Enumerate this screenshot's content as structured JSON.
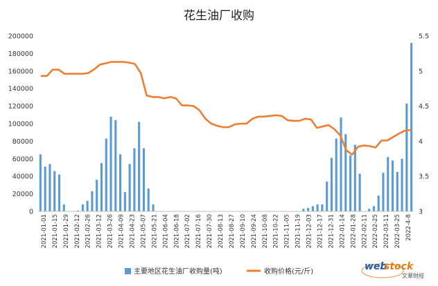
{
  "chart_data": {
    "type": "bar+line",
    "title": "花生油厂收购",
    "y_left": {
      "min": 0,
      "max": 200000,
      "ticks": [
        "0",
        "20000",
        "40000",
        "60000",
        "80000",
        "100000",
        "120000",
        "140000",
        "160000",
        "180000",
        "200000"
      ]
    },
    "y_right": {
      "min": 3,
      "max": 5.5,
      "ticks": [
        "3",
        "3.5",
        "4",
        "4.5",
        "5",
        "5.5"
      ]
    },
    "x_tick_labels": [
      "2021-01-01",
      "2021-01-15",
      "2021-01-29",
      "2021-02-12",
      "2021-02-26",
      "2021-03-12",
      "2021-03-26",
      "2021-04-09",
      "2021-04-23",
      "2021-05-07",
      "2021-05-21",
      "2021-06-04",
      "2021-06-18",
      "2021-07-02",
      "2021-07-16",
      "2021-07-30",
      "2021-08-13",
      "2021-08-27",
      "2021-09-10",
      "2021-09-24",
      "2021-10-08",
      "2021-10-22",
      "2021-11-05",
      "2021-11-19",
      "2021-12-03",
      "2021-12-17",
      "2021-12-31",
      "2022-01-14",
      "2022-01-28",
      "2022-02-11",
      "2022-02-25",
      "2022-03-11",
      "2022-03-25",
      "2022-4-8"
    ],
    "series": [
      {
        "name": "主要地区花生油厂收购量(吨)",
        "type": "bar",
        "axis": "left",
        "color": "#5b9bd5",
        "values": [
          65000,
          51000,
          54000,
          46000,
          42000,
          8000,
          0,
          0,
          1000,
          8000,
          12000,
          23000,
          36000,
          55000,
          83000,
          108000,
          104000,
          65000,
          22000,
          54000,
          72000,
          102000,
          72000,
          26000,
          8000,
          0,
          0,
          0,
          0,
          0,
          0,
          0,
          0,
          0,
          0,
          0,
          0,
          0,
          0,
          0,
          0,
          0,
          0,
          0,
          0,
          0,
          0,
          0,
          0,
          0,
          0,
          0,
          0,
          0,
          0,
          0,
          3000,
          4000,
          6000,
          8000,
          8000,
          34000,
          61000,
          83000,
          107000,
          88000,
          64000,
          76000,
          43000,
          0,
          3000,
          6000,
          18000,
          44000,
          62000,
          58000,
          45000,
          60000,
          123000,
          192000
        ]
      },
      {
        "name": "收购价格(元/斤)",
        "type": "line",
        "axis": "right",
        "color": "#ed7d31",
        "values": [
          4.93,
          4.93,
          5.02,
          5.02,
          4.96,
          4.96,
          4.96,
          4.96,
          4.97,
          5.02,
          5.09,
          5.11,
          5.13,
          5.13,
          5.13,
          5.12,
          5.1,
          4.97,
          4.65,
          4.63,
          4.63,
          4.61,
          4.63,
          4.61,
          4.51,
          4.51,
          4.5,
          4.44,
          4.32,
          4.25,
          4.22,
          4.2,
          4.2,
          4.24,
          4.25,
          4.25,
          4.32,
          4.35,
          4.35,
          4.36,
          4.37,
          4.36,
          4.3,
          4.29,
          4.29,
          4.32,
          4.31,
          4.19,
          4.21,
          4.23,
          4.17,
          4.08,
          3.87,
          3.81,
          3.92,
          3.94,
          3.93,
          3.91,
          4.01,
          4.01,
          4.06,
          4.11,
          4.15,
          4.16
        ]
      }
    ],
    "legend_position": "bottom"
  },
  "watermark": {
    "brand_web": "web",
    "brand_stock": "stock",
    "brand_cn": "文華財經"
  }
}
